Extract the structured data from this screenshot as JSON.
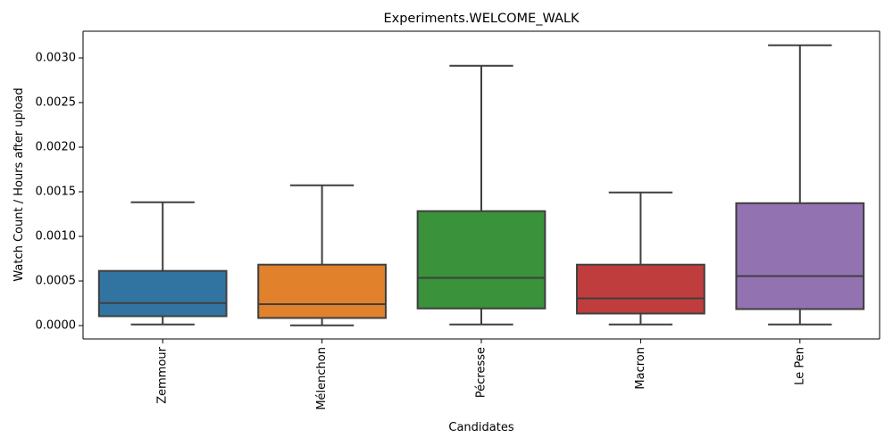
{
  "chart_data": {
    "type": "box",
    "title": "Experiments.WELCOME_WALK",
    "xlabel": "Candidates",
    "ylabel": "Watch Count / Hours after upload",
    "ylim": [
      -0.00015,
      0.0033
    ],
    "yticks": [
      0.0,
      0.0005,
      0.001,
      0.0015,
      0.002,
      0.0025,
      0.003
    ],
    "ytick_labels": [
      "0.0000",
      "0.0005",
      "0.0010",
      "0.0015",
      "0.0020",
      "0.0025",
      "0.0030"
    ],
    "grid": false,
    "categories": [
      "Zemmour",
      "Mélenchon",
      "Pécresse",
      "Macron",
      "Le Pen"
    ],
    "boxes": [
      {
        "category": "Zemmour",
        "whisker_low": 1.2e-05,
        "q1": 0.000105,
        "median": 0.000252,
        "q3": 0.000613,
        "whisker_high": 0.001382,
        "color": "#3274a1"
      },
      {
        "category": "Mélenchon",
        "whisker_low": 2e-06,
        "q1": 8.5e-05,
        "median": 0.00024,
        "q3": 0.000683,
        "whisker_high": 0.001572,
        "color": "#e1812c"
      },
      {
        "category": "Pécresse",
        "whisker_low": 1.2e-05,
        "q1": 0.000192,
        "median": 0.000535,
        "q3": 0.001283,
        "whisker_high": 0.002912,
        "color": "#3a923a"
      },
      {
        "category": "Macron",
        "whisker_low": 1.2e-05,
        "q1": 0.000135,
        "median": 0.000305,
        "q3": 0.000683,
        "whisker_high": 0.001492,
        "color": "#c03d3e"
      },
      {
        "category": "Le Pen",
        "whisker_low": 1.2e-05,
        "q1": 0.000185,
        "median": 0.000555,
        "q3": 0.001372,
        "whisker_high": 0.003142,
        "color": "#9372b2"
      }
    ]
  }
}
